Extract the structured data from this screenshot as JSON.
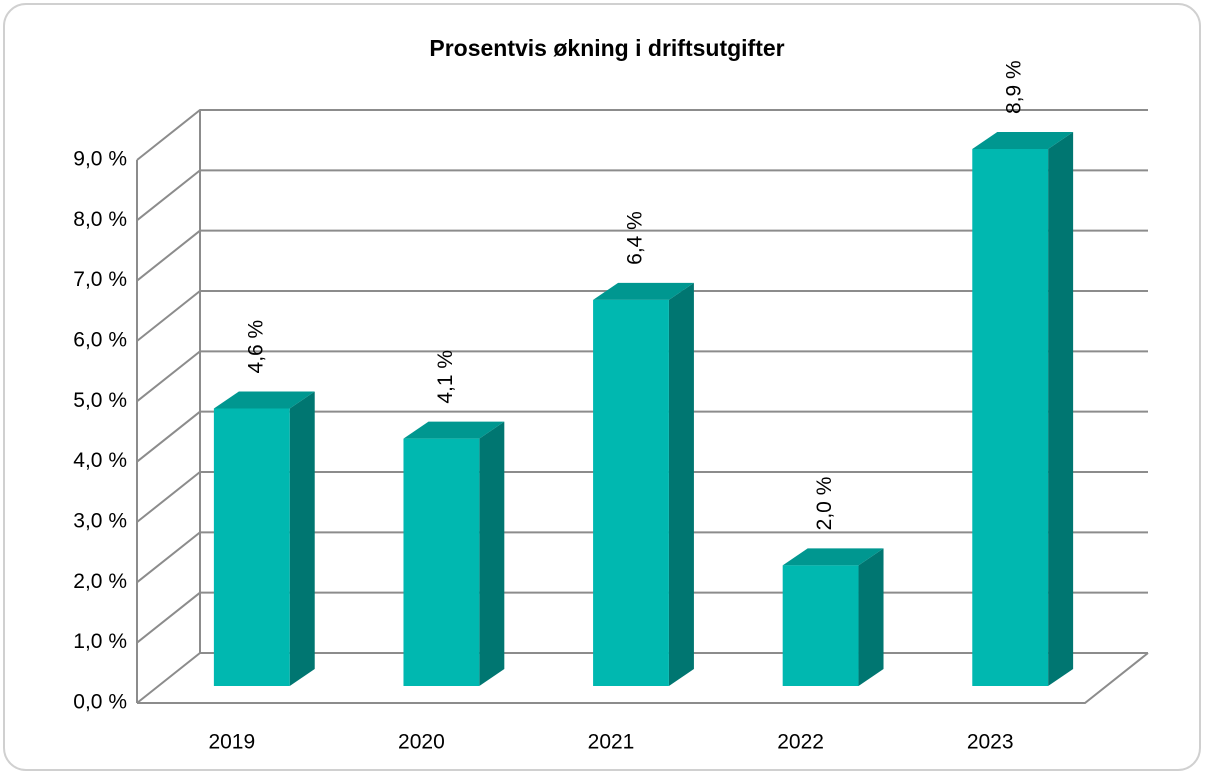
{
  "chart_data": {
    "type": "bar3d",
    "title": "Prosentvis økning i driftsutgifter",
    "categories": [
      "2019",
      "2020",
      "2021",
      "2022",
      "2023"
    ],
    "values": [
      4.6,
      4.1,
      6.4,
      2.0,
      8.9
    ],
    "value_labels": [
      "4,6 %",
      "4,1 %",
      "6,4 %",
      "2,0 %",
      "8,9 %"
    ],
    "color": "#00b8b0",
    "ylim": [
      0,
      9
    ],
    "yticks": [
      {
        "value": 0,
        "label": "0,0 %"
      },
      {
        "value": 1,
        "label": "1,0 %"
      },
      {
        "value": 2,
        "label": "2,0 %"
      },
      {
        "value": 3,
        "label": "3,0 %"
      },
      {
        "value": 4,
        "label": "4,0 %"
      },
      {
        "value": 5,
        "label": "5,0 %"
      },
      {
        "value": 6,
        "label": "6,0 %"
      },
      {
        "value": 7,
        "label": "7,0 %"
      },
      {
        "value": 8,
        "label": "8,0 %"
      },
      {
        "value": 9,
        "label": "9,0 %"
      }
    ],
    "grid": true
  }
}
